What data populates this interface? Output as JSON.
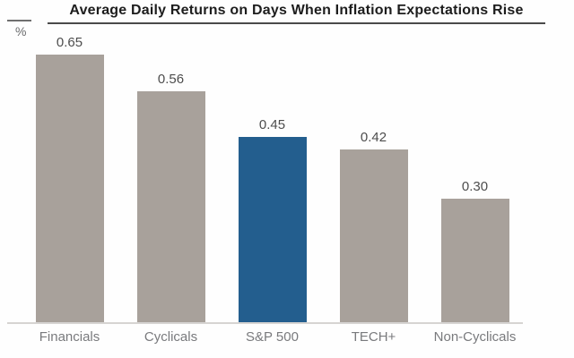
{
  "chart_data": {
    "type": "bar",
    "title": "Average Daily Returns on Days When Inflation Expectations Rise",
    "unit_label": "%",
    "categories": [
      "Financials",
      "Cyclicals",
      "S&P 500",
      "TECH+",
      "Non-Cyclicals"
    ],
    "values": [
      0.65,
      0.56,
      0.45,
      0.42,
      0.3
    ],
    "value_labels": [
      "0.65",
      "0.56",
      "0.45",
      "0.42",
      "0.30"
    ],
    "highlight_index": 2,
    "ylim": [
      0,
      0.7
    ],
    "grid": false,
    "legend": false,
    "colors": {
      "bar": "#a8a19b",
      "highlight": "#235e8e",
      "title": "#1d1d1d",
      "title_rule": "#4a4a4a",
      "tick_segment": "#6f6f6f",
      "unit_label": "#6b6c6e",
      "value_label": "#4d4d4d",
      "category_label": "#797a7d",
      "axis_line": "#d6d4d2"
    }
  }
}
